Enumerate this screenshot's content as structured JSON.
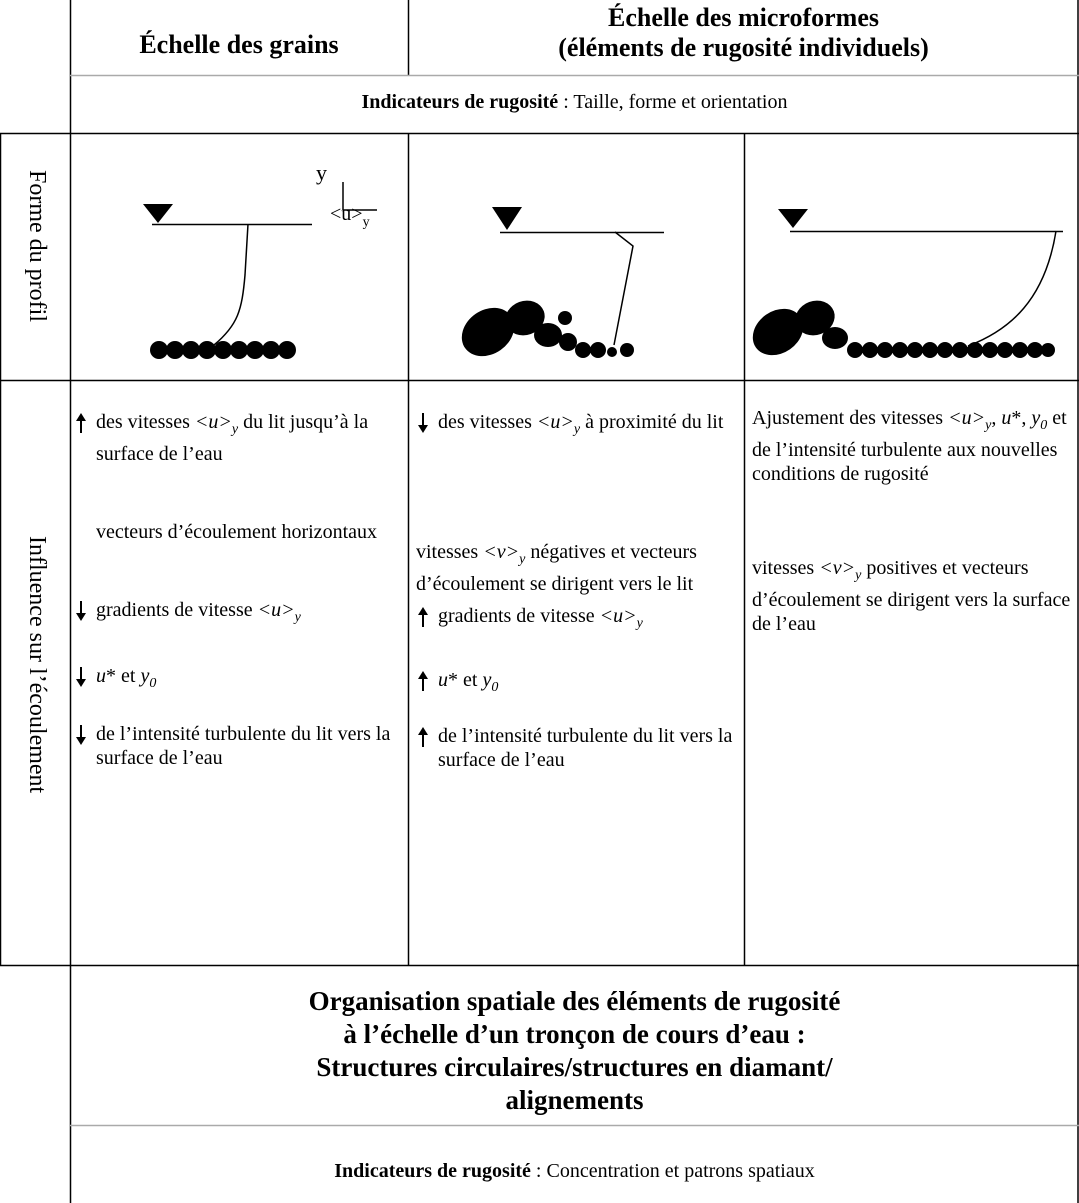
{
  "header": {
    "grain_scale": "Échelle des grains",
    "microform_scale": [
      "Échelle des microformes",
      "(éléments de rugosité individuels)"
    ]
  },
  "indicators_top": {
    "label": "Indicateurs de rugosité",
    "text": ": Taille, forme et orientation"
  },
  "row_labels": {
    "profile": "Forme du profil",
    "influence": "Influence sur l’écoulement"
  },
  "profile_axis": {
    "y": "y",
    "u": "<u>",
    "u_sub": "y"
  },
  "influence": [
    {
      "paragraphs": [
        {
          "arrow": "up",
          "runs": [
            "des vitesses ",
            {
              "text": "<u>",
              "style": "italic"
            },
            {
              "text": "y",
              "style": "italic-sub"
            },
            " du lit jusqu’à la surface de l’eau"
          ]
        },
        {
          "runs": [
            "vecteurs d’écoulement horizontaux"
          ]
        },
        {
          "arrow": "down",
          "runs": [
            "gradients de vitesse ",
            {
              "text": "<u>",
              "style": "italic"
            },
            {
              "text": "y",
              "style": "italic-sub"
            }
          ]
        },
        {
          "arrow": "down",
          "runs": [
            {
              "text": "u",
              "style": "italic"
            },
            "* et ",
            {
              "text": "y",
              "style": "italic"
            },
            {
              "text": "0",
              "style": "italic-sub"
            }
          ]
        },
        {
          "arrow": "down",
          "runs": [
            "de l’intensité turbulente du lit vers la surface de l’eau"
          ]
        }
      ]
    },
    {
      "paragraphs": [
        {
          "arrow": "down",
          "runs": [
            "des vitesses ",
            {
              "text": "<u>",
              "style": "italic"
            },
            {
              "text": "y",
              "style": "italic-sub"
            },
            " à proximité du lit"
          ]
        },
        {
          "runs": [
            "vitesses ",
            {
              "text": "<v>",
              "style": "italic"
            },
            {
              "text": "y",
              "style": "italic-sub"
            },
            " négatives et vecteurs d’écoulement se dirigent vers le lit"
          ]
        },
        {
          "arrow": "up",
          "runs": [
            "gradients de vitesse ",
            {
              "text": "<u>",
              "style": "italic"
            },
            {
              "text": "y",
              "style": "italic-sub"
            }
          ]
        },
        {
          "arrow": "up",
          "runs": [
            {
              "text": "u",
              "style": "italic"
            },
            "* et ",
            {
              "text": "y",
              "style": "italic"
            },
            {
              "text": "0",
              "style": "italic-sub"
            }
          ]
        },
        {
          "arrow": "up",
          "runs": [
            "de l’intensité turbulente du lit vers la surface de l’eau"
          ]
        }
      ]
    },
    {
      "paragraphs": [
        {
          "runs": [
            "Ajustement des vitesses ",
            {
              "text": "<u>",
              "style": "italic"
            },
            {
              "text": "y",
              "style": "italic-sub"
            },
            ", ",
            {
              "text": "u",
              "style": "italic"
            },
            "*, ",
            {
              "text": "y",
              "style": "italic"
            },
            {
              "text": "0",
              "style": "italic-sub"
            },
            " et de l’intensité turbulente aux nouvelles conditions de rugosité"
          ]
        },
        {
          "runs": [
            "vitesses ",
            {
              "text": "<v>",
              "style": "italic"
            },
            {
              "text": "y",
              "style": "italic-sub"
            },
            "  positives et vecteurs d’écoulement se dirigent vers la surface de l’eau"
          ]
        }
      ]
    }
  ],
  "organisation": {
    "lines": [
      "Organisation spatiale des éléments de rugosité",
      "à l’échelle d’un tronçon de cours d’eau :",
      "Structures circulaires/structures en diamant/",
      "alignements"
    ]
  },
  "indicators_bottom": {
    "label": "Indicateurs de rugosité",
    "text": ": Concentration et patrons spatiaux"
  }
}
